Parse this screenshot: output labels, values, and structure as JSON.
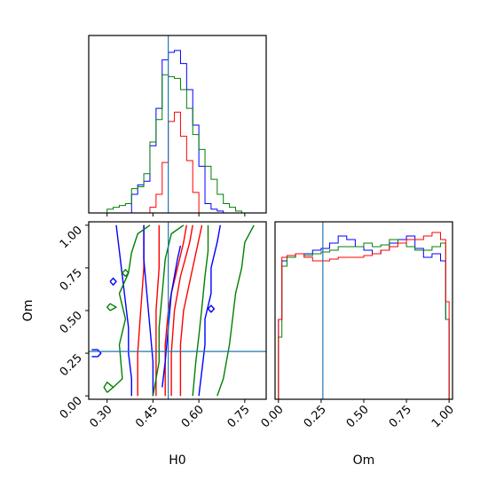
{
  "chart_data": {
    "type": "corner",
    "parameters": [
      "H0",
      "Om"
    ],
    "truth": {
      "H0": 0.5,
      "Om": 0.26
    },
    "colors": {
      "blue": "#0000ff",
      "green": "#008000",
      "red": "#ff0000",
      "truth": "#1f77b4"
    },
    "panels": [
      {
        "id": "h0-histogram",
        "type": "step-histogram",
        "xlim": [
          0.24,
          0.82
        ],
        "xlabel": "",
        "bin_edges": [
          0.24,
          0.26,
          0.28,
          0.3,
          0.32,
          0.34,
          0.36,
          0.38,
          0.4,
          0.42,
          0.44,
          0.46,
          0.48,
          0.5,
          0.52,
          0.54,
          0.56,
          0.58,
          0.6,
          0.62,
          0.64,
          0.66,
          0.68,
          0.7,
          0.72,
          0.74,
          0.76,
          0.78,
          0.8,
          0.82
        ],
        "series": [
          {
            "name": "blue",
            "color": "#0000ff",
            "counts": [
              0,
              0,
              0,
              0,
              0,
              0,
              0,
              0.1,
              0.15,
              0.17,
              0.36,
              0.56,
              0.82,
              0.86,
              0.87,
              0.8,
              0.66,
              0.47,
              0.25,
              0.05,
              0.02,
              0.01,
              0,
              0,
              0,
              0,
              0,
              0,
              0
            ]
          },
          {
            "name": "green",
            "color": "#008000",
            "counts": [
              0,
              0,
              0,
              0.02,
              0.03,
              0.04,
              0.05,
              0.13,
              0.14,
              0.21,
              0.38,
              0.5,
              0.74,
              0.73,
              0.72,
              0.66,
              0.56,
              0.42,
              0.34,
              0.25,
              0.18,
              0.1,
              0.05,
              0.03,
              0.01,
              0,
              0,
              0,
              0
            ]
          },
          {
            "name": "red",
            "color": "#ff0000",
            "counts": [
              0,
              0,
              0,
              0,
              0,
              0,
              0,
              0,
              0,
              0,
              0.03,
              0.1,
              0.27,
              0.49,
              0.54,
              0.41,
              0.28,
              0.11,
              0,
              0,
              0,
              0,
              0,
              0,
              0,
              0,
              0,
              0,
              0
            ]
          }
        ]
      },
      {
        "id": "om-histogram",
        "type": "step-histogram",
        "xlim": [
          -0.02,
          1.02
        ],
        "xlabel": "Om",
        "xticks": [
          "0.00",
          "0.25",
          "0.50",
          "0.75",
          "1.00"
        ],
        "xtick_values": [
          0,
          0.25,
          0.5,
          0.75,
          1.0
        ],
        "bin_edges": [
          0.0,
          0.02,
          0.05,
          0.1,
          0.15,
          0.2,
          0.25,
          0.3,
          0.35,
          0.4,
          0.45,
          0.5,
          0.55,
          0.6,
          0.65,
          0.7,
          0.75,
          0.8,
          0.85,
          0.9,
          0.95,
          0.98,
          1.0
        ],
        "series": [
          {
            "name": "blue",
            "color": "#0000ff",
            "counts": [
              0.45,
              0.78,
              0.8,
              0.82,
              0.82,
              0.84,
              0.85,
              0.88,
              0.92,
              0.9,
              0.86,
              0.84,
              0.82,
              0.84,
              0.88,
              0.9,
              0.92,
              0.85,
              0.8,
              0.82,
              0.78,
              0.45
            ]
          },
          {
            "name": "green",
            "color": "#008000",
            "counts": [
              0.35,
              0.75,
              0.8,
              0.82,
              0.81,
              0.82,
              0.83,
              0.84,
              0.86,
              0.86,
              0.86,
              0.88,
              0.86,
              0.87,
              0.9,
              0.88,
              0.86,
              0.84,
              0.84,
              0.86,
              0.88,
              0.45
            ]
          },
          {
            "name": "red",
            "color": "#ff0000",
            "counts": [
              0.45,
              0.8,
              0.81,
              0.82,
              0.8,
              0.78,
              0.78,
              0.79,
              0.8,
              0.8,
              0.8,
              0.81,
              0.82,
              0.84,
              0.86,
              0.88,
              0.9,
              0.9,
              0.92,
              0.94,
              0.9,
              0.55
            ]
          }
        ]
      },
      {
        "id": "h0-om-contour",
        "type": "contour",
        "xlim": [
          0.24,
          0.82
        ],
        "ylim": [
          -0.02,
          1.02
        ],
        "xlabel": "H0",
        "ylabel": "Om",
        "xticks": [
          "0.30",
          "0.45",
          "0.60",
          "0.75"
        ],
        "xtick_values": [
          0.3,
          0.45,
          0.6,
          0.75
        ],
        "yticks": [
          "0.00",
          "0.25",
          "0.50",
          "0.75",
          "1.00"
        ],
        "ytick_values": [
          0,
          0.25,
          0.5,
          0.75,
          1.0
        ],
        "contours": [
          {
            "color": "#ff0000",
            "points": [
              [
                0.42,
                1.0
              ],
              [
                0.42,
                0.75
              ],
              [
                0.41,
                0.5
              ],
              [
                0.4,
                0.25
              ],
              [
                0.4,
                0.0
              ]
            ]
          },
          {
            "color": "#ff0000",
            "points": [
              [
                0.47,
                1.0
              ],
              [
                0.47,
                0.75
              ],
              [
                0.46,
                0.5
              ],
              [
                0.46,
                0.25
              ],
              [
                0.46,
                0.0
              ]
            ]
          },
          {
            "color": "#ff0000",
            "points": [
              [
                0.49,
                0.0
              ],
              [
                0.49,
                0.3
              ],
              [
                0.5,
                0.5
              ],
              [
                0.51,
                0.6
              ],
              [
                0.53,
                0.75
              ],
              [
                0.55,
                0.9
              ],
              [
                0.56,
                1.0
              ]
            ]
          },
          {
            "color": "#ff0000",
            "points": [
              [
                0.51,
                0.0
              ],
              [
                0.51,
                0.25
              ],
              [
                0.52,
                0.5
              ],
              [
                0.54,
                0.7
              ],
              [
                0.57,
                0.9
              ],
              [
                0.58,
                1.0
              ]
            ]
          },
          {
            "color": "#ff0000",
            "points": [
              [
                0.54,
                0.0
              ],
              [
                0.54,
                0.3
              ],
              [
                0.55,
                0.5
              ],
              [
                0.58,
                0.75
              ],
              [
                0.61,
                1.0
              ]
            ]
          },
          {
            "color": "#0000ff",
            "points": [
              [
                0.33,
                1.0
              ],
              [
                0.34,
                0.85
              ],
              [
                0.35,
                0.7
              ],
              [
                0.36,
                0.55
              ],
              [
                0.37,
                0.4
              ],
              [
                0.37,
                0.25
              ],
              [
                0.38,
                0.1
              ],
              [
                0.38,
                0.0
              ]
            ]
          },
          {
            "color": "#0000ff",
            "points": [
              [
                0.42,
                1.0
              ],
              [
                0.42,
                0.8
              ],
              [
                0.43,
                0.6
              ],
              [
                0.44,
                0.4
              ],
              [
                0.45,
                0.2
              ],
              [
                0.45,
                0.0
              ]
            ]
          },
          {
            "color": "#0000ff",
            "points": [
              [
                0.48,
                0.05
              ],
              [
                0.49,
                0.2
              ],
              [
                0.5,
                0.4
              ],
              [
                0.51,
                0.6
              ],
              [
                0.53,
                0.8
              ],
              [
                0.54,
                0.88
              ]
            ]
          },
          {
            "color": "#0000ff",
            "points": [
              [
                0.6,
                0.0
              ],
              [
                0.61,
                0.15
              ],
              [
                0.62,
                0.3
              ],
              [
                0.62,
                0.45
              ],
              [
                0.64,
                0.6
              ],
              [
                0.64,
                0.75
              ],
              [
                0.66,
                0.9
              ],
              [
                0.67,
                1.0
              ]
            ]
          },
          {
            "color": "#0000ff",
            "points": [
              [
                0.25,
                0.27
              ],
              [
                0.27,
                0.27
              ],
              [
                0.28,
                0.25
              ],
              [
                0.27,
                0.23
              ],
              [
                0.25,
                0.23
              ]
            ]
          },
          {
            "color": "#0000ff",
            "points": [
              [
                0.31,
                0.67
              ],
              [
                0.32,
                0.69
              ],
              [
                0.33,
                0.67
              ],
              [
                0.32,
                0.65
              ],
              [
                0.31,
                0.67
              ]
            ]
          },
          {
            "color": "#0000ff",
            "points": [
              [
                0.63,
                0.51
              ],
              [
                0.64,
                0.53
              ],
              [
                0.65,
                0.51
              ],
              [
                0.64,
                0.49
              ],
              [
                0.63,
                0.51
              ]
            ]
          },
          {
            "color": "#008000",
            "points": [
              [
                0.32,
                0.05
              ],
              [
                0.35,
                0.1
              ],
              [
                0.34,
                0.3
              ],
              [
                0.36,
                0.45
              ],
              [
                0.34,
                0.6
              ],
              [
                0.37,
                0.72
              ],
              [
                0.38,
                0.84
              ],
              [
                0.4,
                0.95
              ],
              [
                0.44,
                1.0
              ]
            ]
          },
          {
            "color": "#008000",
            "points": [
              [
                0.45,
                0.0
              ],
              [
                0.47,
                0.2
              ],
              [
                0.47,
                0.4
              ],
              [
                0.48,
                0.6
              ],
              [
                0.49,
                0.8
              ],
              [
                0.51,
                0.95
              ],
              [
                0.55,
                1.0
              ]
            ]
          },
          {
            "color": "#008000",
            "points": [
              [
                0.58,
                0.0
              ],
              [
                0.59,
                0.2
              ],
              [
                0.6,
                0.35
              ],
              [
                0.61,
                0.52
              ],
              [
                0.62,
                0.7
              ],
              [
                0.63,
                0.85
              ],
              [
                0.63,
                1.0
              ]
            ]
          },
          {
            "color": "#008000",
            "points": [
              [
                0.66,
                0.0
              ],
              [
                0.68,
                0.1
              ],
              [
                0.7,
                0.3
              ],
              [
                0.71,
                0.45
              ],
              [
                0.72,
                0.6
              ],
              [
                0.74,
                0.75
              ],
              [
                0.75,
                0.9
              ],
              [
                0.78,
                1.0
              ]
            ]
          },
          {
            "color": "#008000",
            "points": [
              [
                0.3,
                0.02
              ],
              [
                0.32,
                0.05
              ],
              [
                0.3,
                0.08
              ],
              [
                0.29,
                0.05
              ],
              [
                0.3,
                0.02
              ]
            ]
          },
          {
            "color": "#008000",
            "points": [
              [
                0.31,
                0.5
              ],
              [
                0.33,
                0.52
              ],
              [
                0.31,
                0.54
              ],
              [
                0.3,
                0.52
              ],
              [
                0.31,
                0.5
              ]
            ]
          },
          {
            "color": "#008000",
            "points": [
              [
                0.36,
                0.7
              ],
              [
                0.37,
                0.72
              ],
              [
                0.36,
                0.74
              ],
              [
                0.35,
                0.72
              ],
              [
                0.36,
                0.7
              ]
            ]
          }
        ]
      }
    ]
  }
}
